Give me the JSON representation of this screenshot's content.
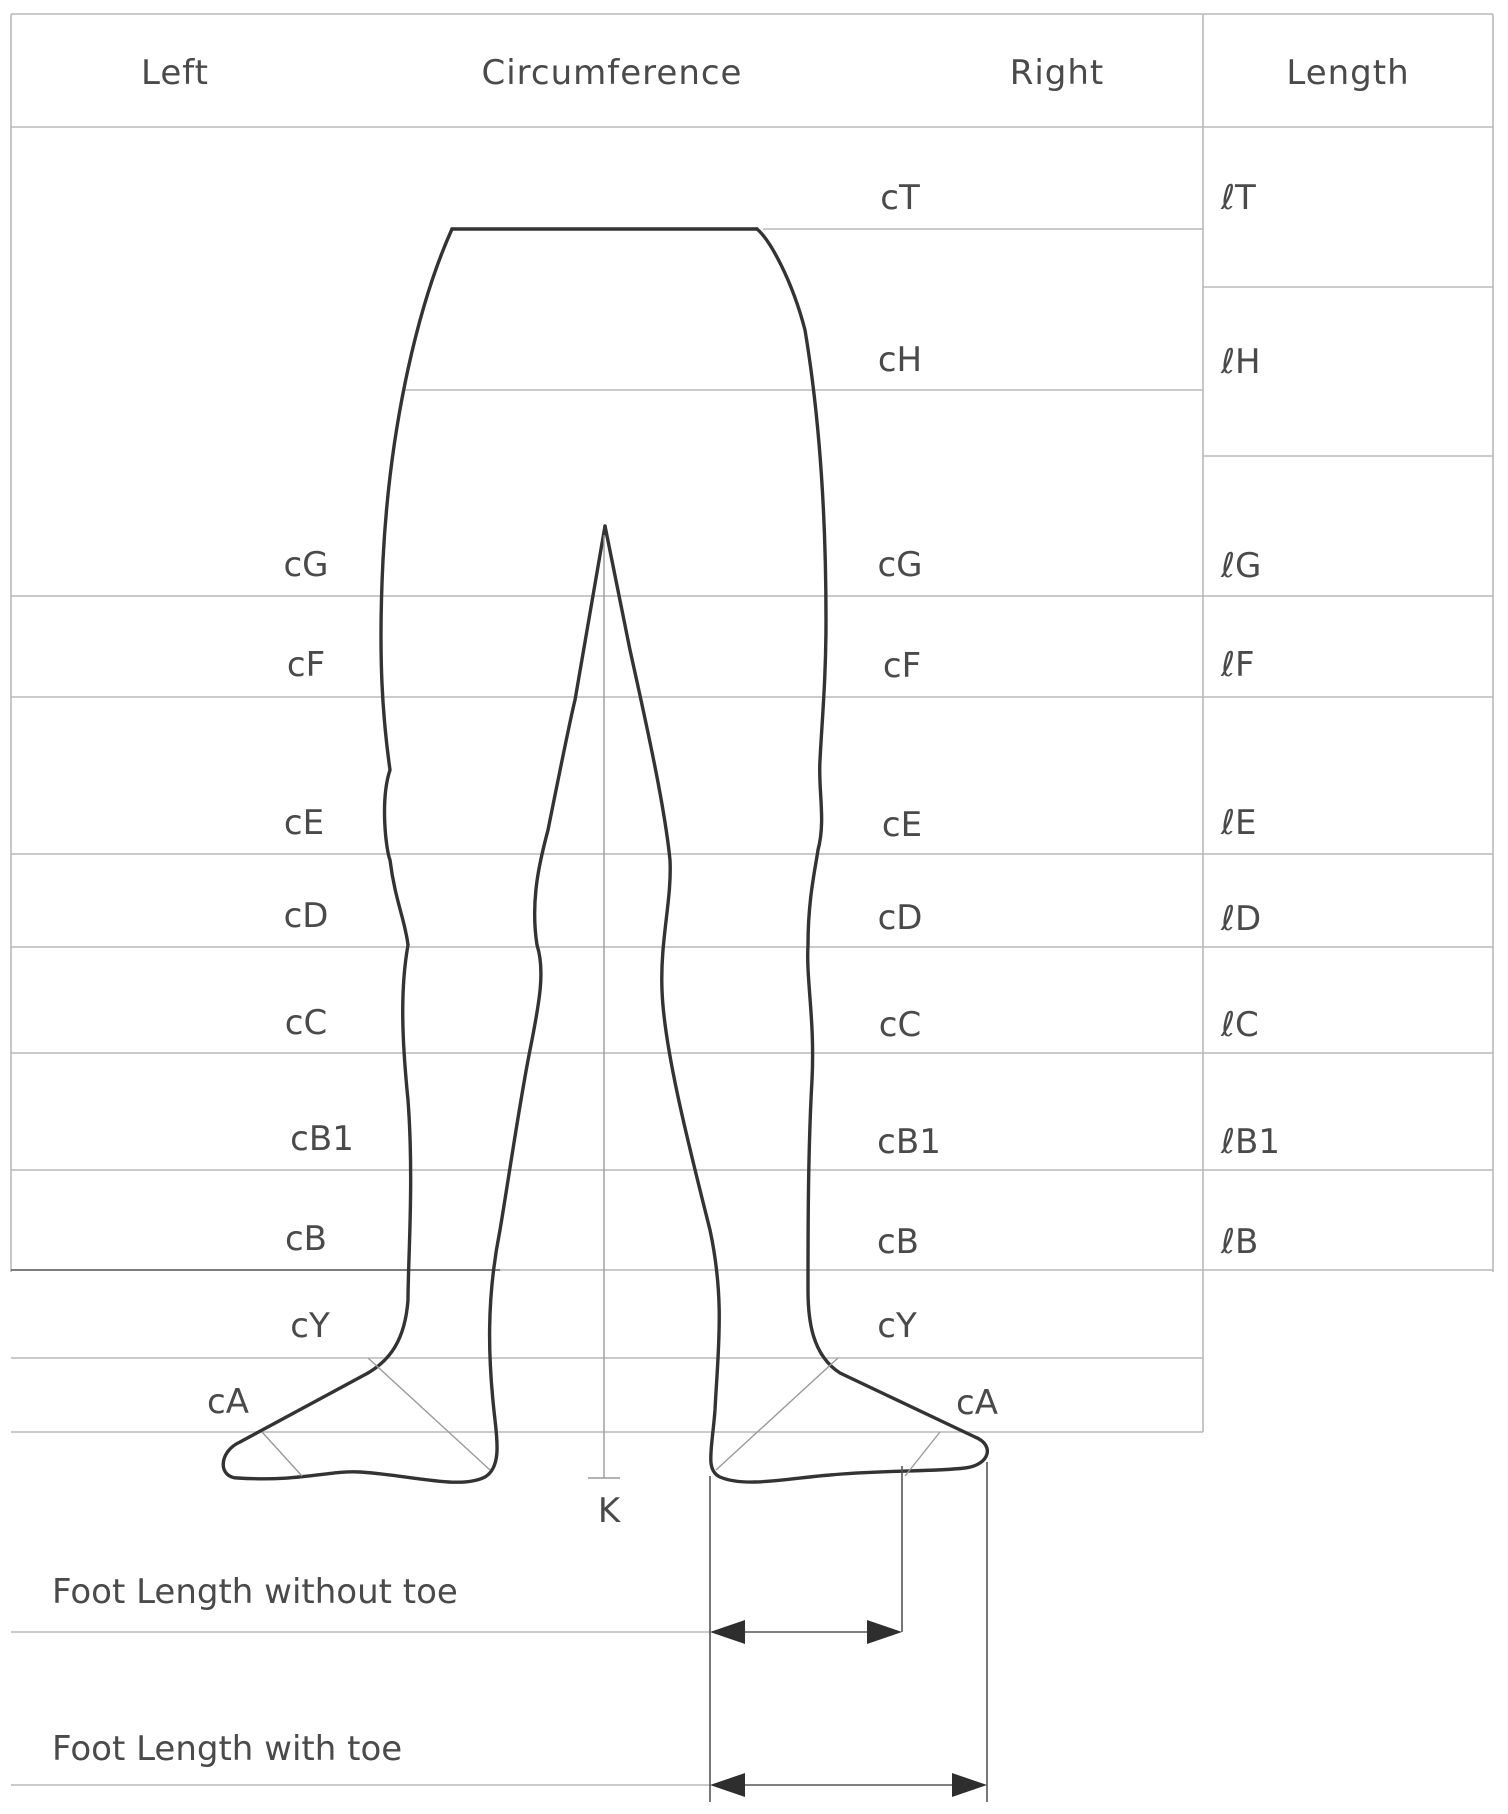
{
  "header": {
    "left": "Left",
    "circumference": "Circumference",
    "right": "Right",
    "length": "Length"
  },
  "left_labels": {
    "cG": "cG",
    "cF": "cF",
    "cE": "cE",
    "cD": "cD",
    "cC": "cC",
    "cB1": "cB1",
    "cB": "cB",
    "cY": "cY",
    "cA": "cA"
  },
  "right_labels": {
    "cT": "cT",
    "cH": "cH",
    "cG": "cG",
    "cF": "cF",
    "cE": "cE",
    "cD": "cD",
    "cC": "cC",
    "cB1": "cB1",
    "cB": "cB",
    "cY": "cY",
    "cA": "cA"
  },
  "length_labels": {
    "lT": "ℓT",
    "lH": "ℓH",
    "lG": "ℓG",
    "lF": "ℓF",
    "lE": "ℓE",
    "lD": "ℓD",
    "lC": "ℓC",
    "lB1": "ℓB1",
    "lB": "ℓB"
  },
  "crotch_label": "K",
  "foot": {
    "without_toe": "Foot Length without toe",
    "with_toe": "Foot Length with toe"
  }
}
